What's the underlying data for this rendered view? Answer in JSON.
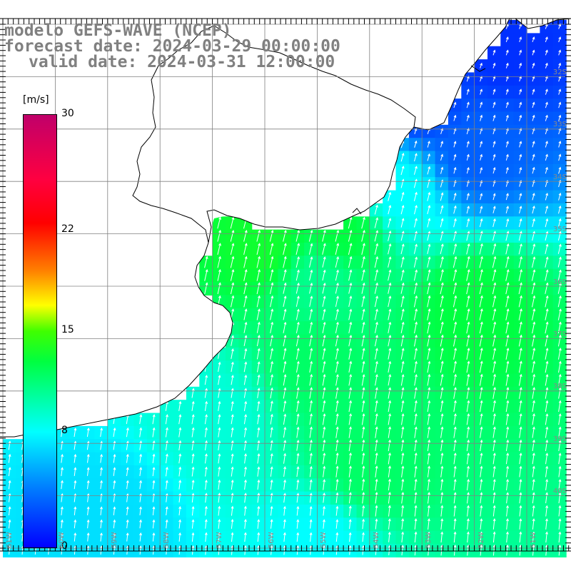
{
  "title": {
    "line1": "modelo GEFS-WAVE (NCEP)",
    "line2": "forecast date: 2024-03-29 00:00:00",
    "line3": "valid date: 2024-03-31 12:00:00"
  },
  "colorbar": {
    "unit": "[m/s]",
    "ticks": [
      {
        "value": 30,
        "label": "30"
      },
      {
        "value": 22,
        "label": "22"
      },
      {
        "value": 15,
        "label": "15"
      },
      {
        "value": 8,
        "label": "8"
      },
      {
        "value": 0,
        "label": "0"
      }
    ],
    "min": 0,
    "max": 30,
    "stops": [
      {
        "value": 0,
        "color": "#0000ff"
      },
      {
        "value": 4,
        "color": "#0080ff"
      },
      {
        "value": 8,
        "color": "#00ffff"
      },
      {
        "value": 13,
        "color": "#00ff40"
      },
      {
        "value": 15,
        "color": "#40ff00"
      },
      {
        "value": 17,
        "color": "#ffff00"
      },
      {
        "value": 19,
        "color": "#ff8000"
      },
      {
        "value": 22,
        "color": "#ff0000"
      },
      {
        "value": 26,
        "color": "#ff0040"
      },
      {
        "value": 30,
        "color": "#c0006a"
      }
    ]
  },
  "lat_labels": [
    "32S",
    "33S",
    "34S",
    "35S",
    "36S",
    "37S",
    "38S",
    "39S",
    "40S"
  ],
  "lon_labels": [
    "61W",
    "60W",
    "59W",
    "58W",
    "57W",
    "56W",
    "55W",
    "54W",
    "53W",
    "52W",
    "51W"
  ],
  "wind": {
    "grid_origin_lon": -61.0,
    "grid_origin_lat": -31.0,
    "field": [
      {
        "lon": -51.5,
        "lat": -31.5,
        "speed": 1.5
      },
      {
        "lon": -53.0,
        "lat": -32.5,
        "speed": 2.0
      },
      {
        "lon": -52.0,
        "lat": -33.5,
        "speed": 3.0
      },
      {
        "lon": -53.5,
        "lat": -34.3,
        "speed": 8.0
      },
      {
        "lon": -54.5,
        "lat": -35.0,
        "speed": 13.0
      },
      {
        "lon": -56.0,
        "lat": -35.3,
        "speed": 13.5
      },
      {
        "lon": -55.0,
        "lat": -36.0,
        "speed": 11.0
      },
      {
        "lon": -52.0,
        "lat": -36.5,
        "speed": 13.0
      },
      {
        "lon": -55.0,
        "lat": -37.5,
        "speed": 12.0
      },
      {
        "lon": -57.0,
        "lat": -38.5,
        "speed": 9.0
      },
      {
        "lon": -54.0,
        "lat": -39.5,
        "speed": 12.0
      },
      {
        "lon": -59.0,
        "lat": -40.5,
        "speed": 7.0
      },
      {
        "lon": -55.0,
        "lat": -41.0,
        "speed": 8.0
      }
    ]
  },
  "colors": {
    "land": "#ffffff",
    "coast": "#000000",
    "grid": "#808080",
    "title": "#808080",
    "arrow": "#ffffff"
  }
}
